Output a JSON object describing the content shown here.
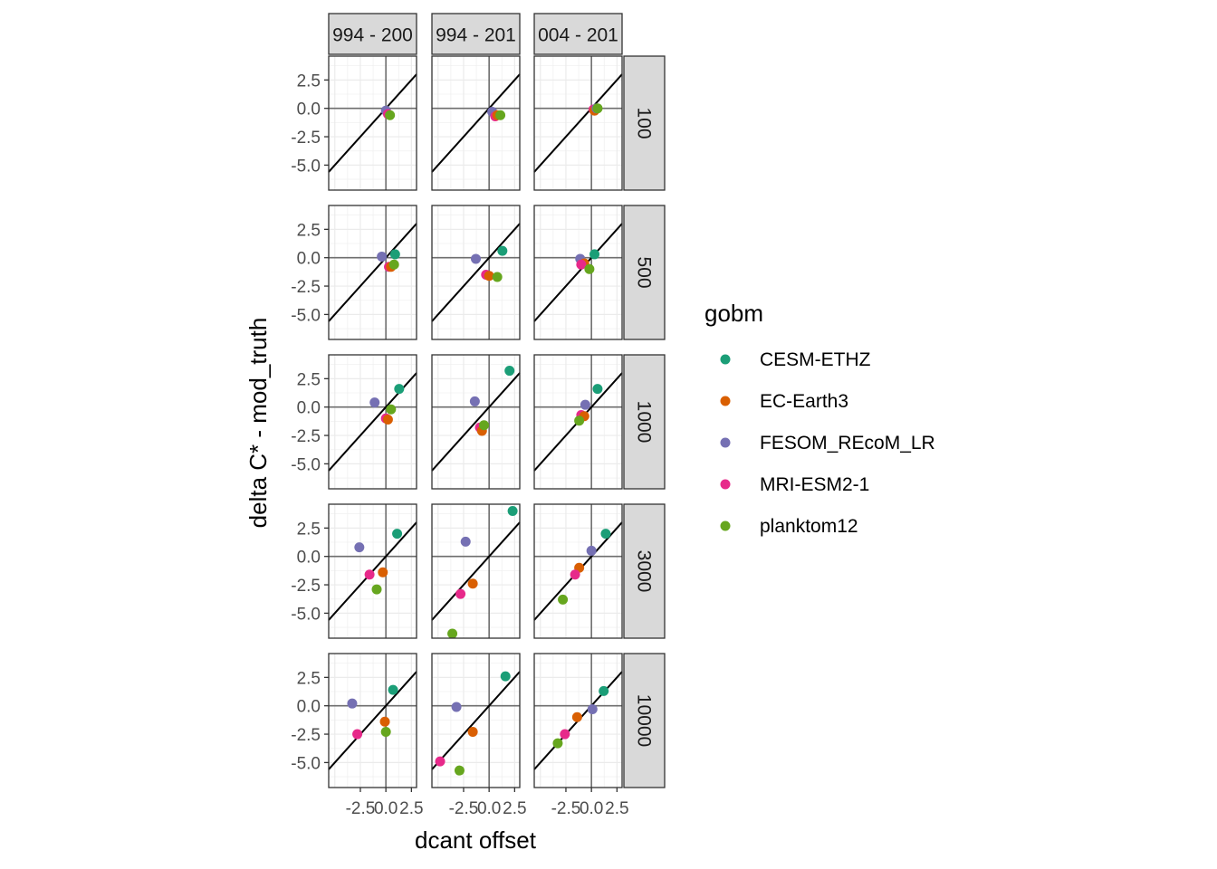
{
  "chart_data": {
    "type": "scatter",
    "xlabel": "dcant offset",
    "ylabel": "delta C* - mod_truth",
    "column_strips": [
      "994 - 200",
      "994 - 201",
      "004 - 201"
    ],
    "row_strips": [
      "100",
      "500",
      "1000",
      "3000",
      "10000"
    ],
    "xlim": [
      -5.6,
      3.0
    ],
    "ylim": [
      -7.2,
      4.6
    ],
    "x_ticks": [
      -2.5,
      0.0,
      2.5
    ],
    "x_tick_labels": [
      "-2.5",
      "0.0",
      "2.5"
    ],
    "y_ticks": [
      2.5,
      0.0,
      -2.5,
      -5.0
    ],
    "y_tick_labels": [
      "2.5",
      "0.0",
      "-2.5",
      "-5.0"
    ],
    "reference_line": "y = x",
    "grid": true,
    "legend": {
      "title": "gobm",
      "position": "right",
      "entries": [
        {
          "name": "CESM-ETHZ",
          "color": "#1b9e77"
        },
        {
          "name": "EC-Earth3",
          "color": "#d95f02"
        },
        {
          "name": "FESOM_REcoM_LR",
          "color": "#7570b3"
        },
        {
          "name": "MRI-ESM2-1",
          "color": "#e7298a"
        },
        {
          "name": "planktom12",
          "color": "#66a61e"
        }
      ]
    },
    "panels": [
      {
        "row": "100",
        "col": "994 - 200",
        "points": [
          {
            "series": "FESOM_REcoM_LR",
            "x": 0.0,
            "y": -0.2
          },
          {
            "series": "MRI-ESM2-1",
            "x": 0.2,
            "y": -0.5
          },
          {
            "series": "planktom12",
            "x": 0.4,
            "y": -0.6
          }
        ]
      },
      {
        "row": "100",
        "col": "994 - 201",
        "points": [
          {
            "series": "FESOM_REcoM_LR",
            "x": 0.3,
            "y": -0.3
          },
          {
            "series": "MRI-ESM2-1",
            "x": 0.6,
            "y": -0.7
          },
          {
            "series": "EC-Earth3",
            "x": 0.8,
            "y": -0.6
          },
          {
            "series": "planktom12",
            "x": 1.1,
            "y": -0.6
          }
        ]
      },
      {
        "row": "100",
        "col": "004 - 201",
        "points": [
          {
            "series": "MRI-ESM2-1",
            "x": 0.2,
            "y": -0.1
          },
          {
            "series": "EC-Earth3",
            "x": 0.3,
            "y": -0.2
          },
          {
            "series": "FESOM_REcoM_LR",
            "x": 0.5,
            "y": 0.0
          },
          {
            "series": "planktom12",
            "x": 0.6,
            "y": 0.0
          }
        ]
      },
      {
        "row": "500",
        "col": "994 - 200",
        "points": [
          {
            "series": "FESOM_REcoM_LR",
            "x": -0.4,
            "y": 0.1
          },
          {
            "series": "CESM-ETHZ",
            "x": 0.9,
            "y": 0.3
          },
          {
            "series": "MRI-ESM2-1",
            "x": 0.3,
            "y": -0.8
          },
          {
            "series": "EC-Earth3",
            "x": 0.5,
            "y": -0.8
          },
          {
            "series": "planktom12",
            "x": 0.8,
            "y": -0.6
          }
        ]
      },
      {
        "row": "500",
        "col": "994 - 201",
        "points": [
          {
            "series": "FESOM_REcoM_LR",
            "x": -1.3,
            "y": -0.1
          },
          {
            "series": "CESM-ETHZ",
            "x": 1.3,
            "y": 0.6
          },
          {
            "series": "MRI-ESM2-1",
            "x": -0.3,
            "y": -1.5
          },
          {
            "series": "EC-Earth3",
            "x": 0.0,
            "y": -1.6
          },
          {
            "series": "planktom12",
            "x": 0.8,
            "y": -1.7
          }
        ]
      },
      {
        "row": "500",
        "col": "004 - 201",
        "points": [
          {
            "series": "FESOM_REcoM_LR",
            "x": -1.1,
            "y": -0.1
          },
          {
            "series": "CESM-ETHZ",
            "x": 0.3,
            "y": 0.3
          },
          {
            "series": "EC-Earth3",
            "x": -0.7,
            "y": -0.5
          },
          {
            "series": "MRI-ESM2-1",
            "x": -1.0,
            "y": -0.6
          },
          {
            "series": "planktom12",
            "x": -0.2,
            "y": -1.0
          }
        ]
      },
      {
        "row": "1000",
        "col": "994 - 200",
        "points": [
          {
            "series": "FESOM_REcoM_LR",
            "x": -1.1,
            "y": 0.4
          },
          {
            "series": "CESM-ETHZ",
            "x": 1.3,
            "y": 1.6
          },
          {
            "series": "planktom12",
            "x": 0.5,
            "y": -0.2
          },
          {
            "series": "MRI-ESM2-1",
            "x": 0.0,
            "y": -1.0
          },
          {
            "series": "EC-Earth3",
            "x": 0.2,
            "y": -1.1
          }
        ]
      },
      {
        "row": "1000",
        "col": "994 - 201",
        "points": [
          {
            "series": "FESOM_REcoM_LR",
            "x": -1.4,
            "y": 0.5
          },
          {
            "series": "CESM-ETHZ",
            "x": 2.0,
            "y": 3.2
          },
          {
            "series": "MRI-ESM2-1",
            "x": -0.9,
            "y": -1.8
          },
          {
            "series": "EC-Earth3",
            "x": -0.7,
            "y": -2.1
          },
          {
            "series": "planktom12",
            "x": -0.5,
            "y": -1.6
          }
        ]
      },
      {
        "row": "1000",
        "col": "004 - 201",
        "points": [
          {
            "series": "CESM-ETHZ",
            "x": 0.6,
            "y": 1.6
          },
          {
            "series": "FESOM_REcoM_LR",
            "x": -0.6,
            "y": 0.2
          },
          {
            "series": "MRI-ESM2-1",
            "x": -1.0,
            "y": -0.7
          },
          {
            "series": "EC-Earth3",
            "x": -0.7,
            "y": -0.8
          },
          {
            "series": "planktom12",
            "x": -1.2,
            "y": -1.2
          }
        ]
      },
      {
        "row": "3000",
        "col": "994 - 200",
        "points": [
          {
            "series": "FESOM_REcoM_LR",
            "x": -2.6,
            "y": 0.8
          },
          {
            "series": "CESM-ETHZ",
            "x": 1.1,
            "y": 2.0
          },
          {
            "series": "EC-Earth3",
            "x": -0.3,
            "y": -1.4
          },
          {
            "series": "MRI-ESM2-1",
            "x": -1.6,
            "y": -1.6
          },
          {
            "series": "planktom12",
            "x": -0.9,
            "y": -2.9
          }
        ]
      },
      {
        "row": "3000",
        "col": "994 - 201",
        "points": [
          {
            "series": "CESM-ETHZ",
            "x": 2.3,
            "y": 4.0
          },
          {
            "series": "FESOM_REcoM_LR",
            "x": -2.3,
            "y": 1.3
          },
          {
            "series": "EC-Earth3",
            "x": -1.6,
            "y": -2.4
          },
          {
            "series": "MRI-ESM2-1",
            "x": -2.8,
            "y": -3.3
          },
          {
            "series": "planktom12",
            "x": -3.6,
            "y": -6.8
          }
        ]
      },
      {
        "row": "3000",
        "col": "004 - 201",
        "points": [
          {
            "series": "CESM-ETHZ",
            "x": 1.4,
            "y": 2.0
          },
          {
            "series": "FESOM_REcoM_LR",
            "x": 0.0,
            "y": 0.5
          },
          {
            "series": "EC-Earth3",
            "x": -1.2,
            "y": -1.0
          },
          {
            "series": "MRI-ESM2-1",
            "x": -1.6,
            "y": -1.6
          },
          {
            "series": "planktom12",
            "x": -2.8,
            "y": -3.8
          }
        ]
      },
      {
        "row": "10000",
        "col": "994 - 200",
        "points": [
          {
            "series": "FESOM_REcoM_LR",
            "x": -3.3,
            "y": 0.2
          },
          {
            "series": "CESM-ETHZ",
            "x": 0.7,
            "y": 1.4
          },
          {
            "series": "EC-Earth3",
            "x": -0.1,
            "y": -1.4
          },
          {
            "series": "MRI-ESM2-1",
            "x": -2.8,
            "y": -2.5
          },
          {
            "series": "planktom12",
            "x": 0.0,
            "y": -2.3
          }
        ]
      },
      {
        "row": "10000",
        "col": "994 - 201",
        "points": [
          {
            "series": "CESM-ETHZ",
            "x": 1.6,
            "y": 2.6
          },
          {
            "series": "FESOM_REcoM_LR",
            "x": -3.2,
            "y": -0.1
          },
          {
            "series": "EC-Earth3",
            "x": -1.6,
            "y": -2.3
          },
          {
            "series": "MRI-ESM2-1",
            "x": -4.8,
            "y": -4.9
          },
          {
            "series": "planktom12",
            "x": -2.9,
            "y": -5.7
          }
        ]
      },
      {
        "row": "10000",
        "col": "004 - 201",
        "points": [
          {
            "series": "CESM-ETHZ",
            "x": 1.2,
            "y": 1.3
          },
          {
            "series": "FESOM_REcoM_LR",
            "x": 0.1,
            "y": -0.3
          },
          {
            "series": "EC-Earth3",
            "x": -1.4,
            "y": -1.0
          },
          {
            "series": "MRI-ESM2-1",
            "x": -2.6,
            "y": -2.5
          },
          {
            "series": "planktom12",
            "x": -3.3,
            "y": -3.3
          }
        ]
      }
    ]
  }
}
